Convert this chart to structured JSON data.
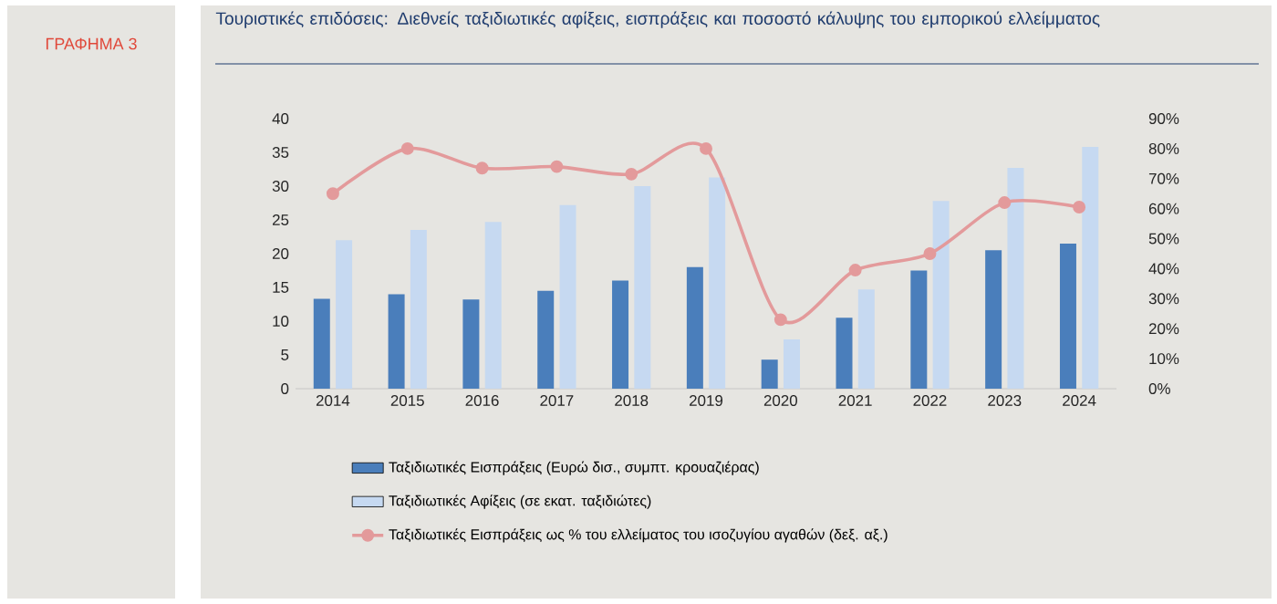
{
  "chart_data": {
    "type": "bar",
    "title": "Τουριστικές επιδόσεις: Διεθνείς ταξιδιωτικές αφίξεις, εισπράξεις και ποσοστό κάλυψης του εμπορικού ελλείμματος",
    "annotations": [
      "ΓΡΑΦΗΜΑ 3"
    ],
    "categories": [
      "2014",
      "2015",
      "2016",
      "2017",
      "2018",
      "2019",
      "2020",
      "2021",
      "2022",
      "2023",
      "2024"
    ],
    "series": [
      {
        "name": "Ταξιδιωτικές Εισπράξεις (Ευρώ δισ., συμπτ. κρουαζιέρας)",
        "color": "#4a7ebb",
        "values": [
          13.3,
          14.0,
          13.2,
          14.5,
          16.0,
          18.0,
          4.3,
          10.5,
          17.5,
          20.5,
          21.5
        ]
      },
      {
        "name": "Ταξιδιωτικές Αφίξεις (σε εκατ. ταξιδιώτες)",
        "color": "#c6d9f1",
        "values": [
          22.0,
          23.5,
          24.7,
          27.2,
          30.0,
          31.3,
          7.3,
          14.7,
          27.8,
          32.7,
          35.8
        ]
      },
      {
        "name": "Ταξιδιωτικές Εισπράξεις ως % του ελλείματος του ισοζυγίου αγαθών (δεξ. αξ.)",
        "color": "#e39a9b",
        "type": "line",
        "axis": "y2",
        "marker": "circle",
        "values": [
          65,
          80,
          73.5,
          74,
          71.5,
          80,
          23,
          39.5,
          45,
          62,
          60.5
        ]
      }
    ],
    "ylim": [
      0,
      40
    ],
    "yticks": [
      0,
      5,
      10,
      15,
      20,
      25,
      30,
      35,
      40
    ],
    "y2lim": [
      0,
      90
    ],
    "y2ticks": [
      {
        "value": 0,
        "label": "0%"
      },
      {
        "value": 10,
        "label": "10%"
      },
      {
        "value": 20,
        "label": "20%"
      },
      {
        "value": 30,
        "label": "30%"
      },
      {
        "value": 40,
        "label": "40%"
      },
      {
        "value": 50,
        "label": "50%"
      },
      {
        "value": 60,
        "label": "60%"
      },
      {
        "value": 70,
        "label": "70%"
      },
      {
        "value": 80,
        "label": "80%"
      },
      {
        "value": 90,
        "label": "90%"
      }
    ],
    "legend": "bottom"
  }
}
